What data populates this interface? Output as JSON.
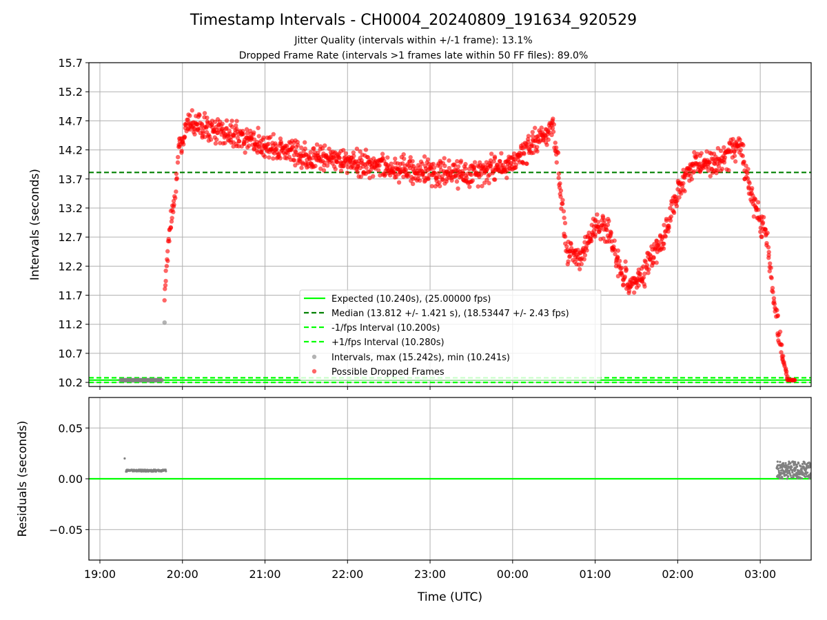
{
  "chart_data": {
    "title": "Timestamp Intervals - CH0004_20240809_191634_920529",
    "subtitle_1": "Jitter Quality (intervals within +/-1 frame): 13.1%",
    "subtitle_2": "Dropped Frame Rate (intervals >1 frames late within 50 FF files): 89.0%",
    "xlabel": "Time (UTC)",
    "x_tick_labels": [
      "19:00",
      "20:00",
      "21:00",
      "22:00",
      "23:00",
      "00:00",
      "01:00",
      "02:00",
      "03:00"
    ],
    "x_range": [
      "18:52",
      "03:37"
    ],
    "panels": [
      {
        "name": "intervals",
        "type": "scatter",
        "ylabel": "Intervals (seconds)",
        "ylim": [
          10.13,
          15.7
        ],
        "y_ticks": [
          "10.2",
          "10.7",
          "11.2",
          "11.7",
          "12.2",
          "12.7",
          "13.2",
          "13.7",
          "14.2",
          "14.7",
          "15.2",
          "15.7"
        ],
        "grid": true,
        "reference_lines": {
          "expected": 10.24,
          "median": 13.812,
          "lower_interval": 10.2,
          "upper_interval": 10.28
        },
        "legend": {
          "placement": "lower-center",
          "entries": [
            "Expected (10.240s), (25.00000 fps)",
            "Median (13.812 +/- 1.421 s), (18.53447 +/- 2.43 fps)",
            "-1/fps Interval (10.200s)",
            "+1/fps Interval (10.280s)",
            "Intervals, max (15.242s), min (10.241s)",
            "Possible Dropped Frames"
          ]
        },
        "series": [
          {
            "name": "Intervals",
            "color": "#808080",
            "points": [
              [
                "19:15",
                10.24
              ],
              [
                "19:30",
                10.24
              ],
              [
                "19:45",
                10.24
              ],
              [
                "19:47",
                11.23
              ],
              [
                "03:20",
                10.25
              ],
              [
                "03:30",
                10.25
              ]
            ]
          },
          {
            "name": "Possible Dropped Frames",
            "color": "#ff0000",
            "trend": [
              [
                "19:47",
                11.7
              ],
              [
                "19:50",
                12.7
              ],
              [
                "19:54",
                13.3
              ],
              [
                "19:57",
                14.2
              ],
              [
                "20:05",
                14.7
              ],
              [
                "20:30",
                14.5
              ],
              [
                "21:00",
                14.3
              ],
              [
                "21:30",
                14.1
              ],
              [
                "22:00",
                14.0
              ],
              [
                "22:30",
                13.9
              ],
              [
                "23:00",
                13.8
              ],
              [
                "23:30",
                13.8
              ],
              [
                "00:00",
                14.0
              ],
              [
                "00:30",
                14.6
              ],
              [
                "00:37",
                13.0
              ],
              [
                "00:40",
                12.4
              ],
              [
                "00:50",
                12.4
              ],
              [
                "01:00",
                12.9
              ],
              [
                "01:10",
                12.8
              ],
              [
                "01:20",
                12.0
              ],
              [
                "01:30",
                11.9
              ],
              [
                "01:40",
                12.3
              ],
              [
                "01:50",
                12.7
              ],
              [
                "02:00",
                13.5
              ],
              [
                "02:10",
                13.9
              ],
              [
                "02:30",
                14.0
              ],
              [
                "02:45",
                14.3
              ],
              [
                "02:55",
                13.3
              ],
              [
                "03:05",
                12.7
              ],
              [
                "03:10",
                11.6
              ],
              [
                "03:15",
                10.8
              ],
              [
                "03:20",
                10.24
              ],
              [
                "03:25",
                10.24
              ]
            ]
          }
        ]
      },
      {
        "name": "residuals",
        "type": "scatter",
        "ylabel": "Residuals (seconds)",
        "ylim": [
          -0.08,
          0.08
        ],
        "y_ticks": [
          "0.05",
          "0.00",
          "−0.05"
        ],
        "grid": true,
        "reference_line": 0.0,
        "series": [
          {
            "name": "Residuals",
            "color": "#808080",
            "points": [
              [
                "19:18",
                0.02
              ],
              [
                "19:20",
                0.008
              ],
              [
                "19:30",
                0.008
              ],
              [
                "19:40",
                0.008
              ],
              [
                "19:48",
                0.008
              ],
              [
                "03:12",
                0.008
              ],
              [
                "03:20",
                0.012
              ],
              [
                "03:30",
                0.015
              ],
              [
                "03:36",
                0.012
              ]
            ]
          }
        ]
      }
    ]
  },
  "colors": {
    "expected": "#00ff00",
    "median": "#008000",
    "interval_bounds": "#00ff00",
    "intervals": "#808080",
    "dropped": "#ff0000",
    "grid": "#b0b0b0"
  }
}
